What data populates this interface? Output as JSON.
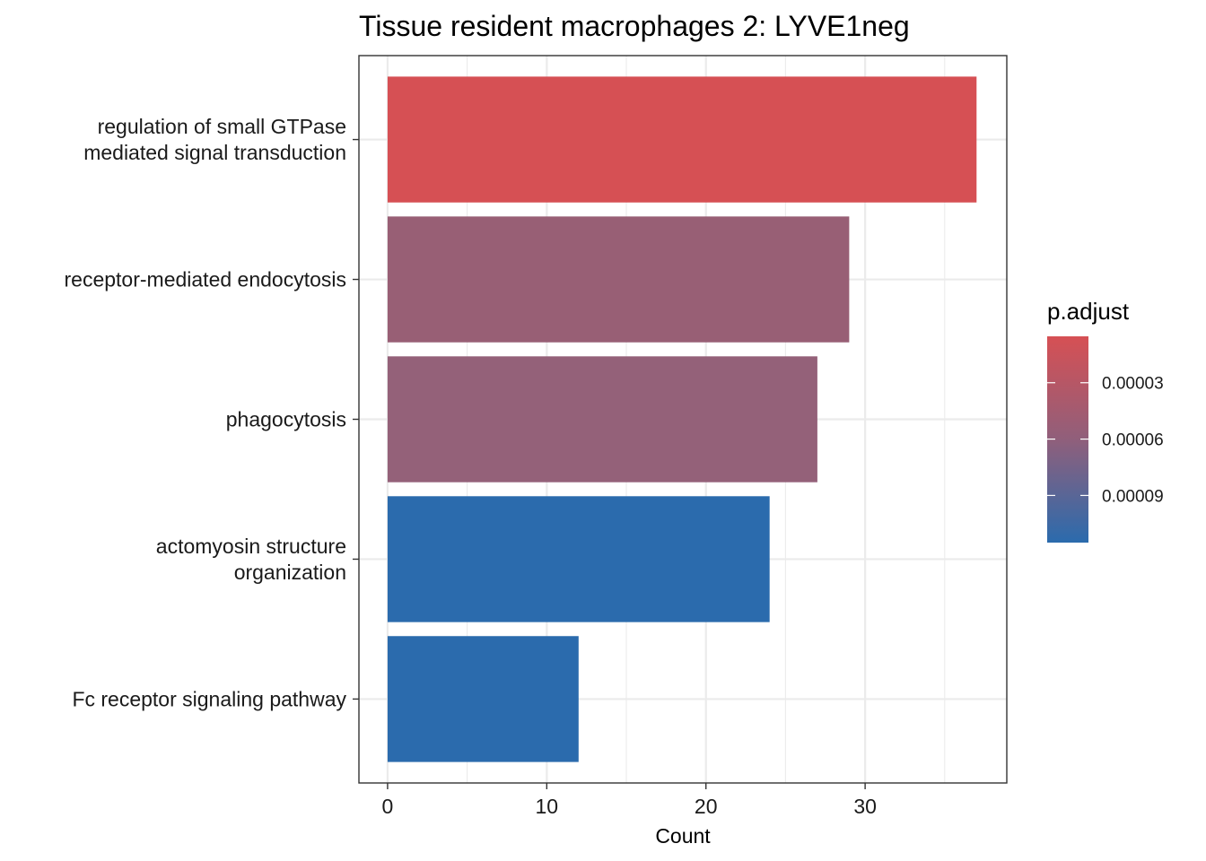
{
  "chart_data": {
    "type": "bar",
    "orientation": "horizontal",
    "title": "Tissue resident macrophages 2: LYVE1neg",
    "xlabel": "Count",
    "ylabel": "",
    "xlim": [
      -1.8,
      38.9
    ],
    "xticks": [
      "0",
      "10",
      "20",
      "30"
    ],
    "grid": true,
    "categories": [
      [
        "regulation of small GTPase",
        "mediated signal transduction"
      ],
      [
        "receptor-mediated endocytosis"
      ],
      [
        "phagocytosis"
      ],
      [
        "actomyosin structure",
        "organization"
      ],
      [
        "Fc receptor signaling pathway"
      ]
    ],
    "values": [
      37,
      29,
      27,
      24,
      12
    ],
    "p_adjust": [
      1.1e-05,
      5.2e-05,
      5.4e-05,
      0.000112,
      0.000112
    ],
    "colors": [
      "#D65054",
      "#985F75",
      "#946179",
      "#2B6BAD",
      "#2B6BAD"
    ],
    "legend": {
      "title": "p.adjust",
      "position": "right",
      "labels": [
        "0.00003",
        "0.00006",
        "0.00009"
      ],
      "ticks": [
        3e-05,
        6e-05,
        9e-05
      ],
      "range": [
        5.3e-06,
        0.0001151
      ],
      "color_low": "#D65054",
      "color_high": "#2B6BAD"
    }
  }
}
